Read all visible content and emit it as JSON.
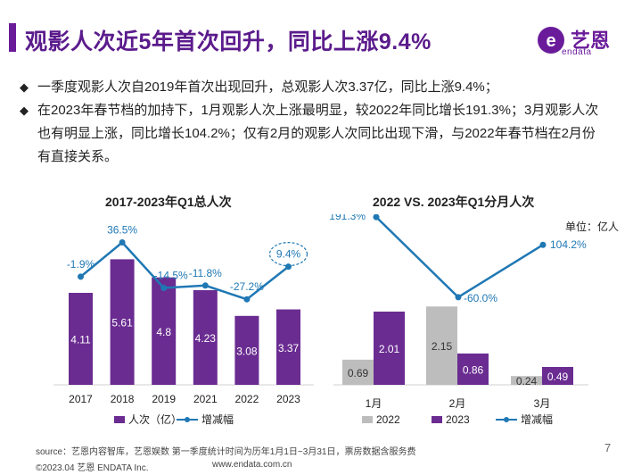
{
  "header": {
    "title": "观影人次近5年首次回升，同比上涨9.4%",
    "logo_text": "艺恩",
    "logo_sub": "endata",
    "accent": "#5b1b8c"
  },
  "bullets": [
    "一季度观影人次自2019年首次出现回升，总观影人次3.37亿，同比上涨9.4%；",
    "在2023年春节档的加持下，1月观影人次上涨最明显，较2022年同比增长191.3%；3月观影人次也有明显上涨，同比增长104.2%；仅有2月的观影人次同比出现下滑，与2022年春节档在2月份有直接关系。"
  ],
  "bullet_mark": "◆",
  "chart_data": [
    {
      "type": "bar",
      "title": "2017-2023年Q1总人次",
      "categories": [
        "2017",
        "2018",
        "2019",
        "2021",
        "2022",
        "2023"
      ],
      "series": [
        {
          "name": "人次（亿）",
          "kind": "bar",
          "color": "#6a2c91",
          "values": [
            4.11,
            5.61,
            4.8,
            4.23,
            3.08,
            3.37
          ],
          "labels": [
            "4.11",
            "5.61",
            "4.8",
            "4.23",
            "3.08",
            "3.37"
          ]
        },
        {
          "name": "增减幅",
          "kind": "line",
          "color": "#1f78b4",
          "values": [
            -1.9,
            36.5,
            -14.5,
            -11.8,
            -27.2,
            9.4
          ],
          "labels": [
            "-1.9%",
            "36.5%",
            "-14.5%",
            "-11.8%",
            "-27.2%",
            "9.4%"
          ]
        }
      ],
      "highlight_index": 5,
      "ylim_bar": [
        0,
        6
      ],
      "ylim_line": [
        -40,
        45
      ]
    },
    {
      "type": "bar",
      "title": "2022 VS. 2023年Q1分月人次",
      "unit": "单位：亿人",
      "categories": [
        "1月",
        "2月",
        "3月"
      ],
      "series": [
        {
          "name": "2022",
          "kind": "bar",
          "color": "#bdbdbd",
          "values": [
            0.69,
            2.15,
            0.24
          ],
          "labels": [
            "0.69",
            "2.15",
            "0.24"
          ]
        },
        {
          "name": "2023",
          "kind": "bar",
          "color": "#6a2c91",
          "values": [
            2.01,
            0.86,
            0.49
          ],
          "labels": [
            "2.01",
            "0.86",
            "0.49"
          ]
        },
        {
          "name": "增减幅",
          "kind": "line",
          "color": "#1f78b4",
          "values": [
            191.3,
            -60.0,
            104.2
          ],
          "labels": [
            "191.3%",
            "-60.0%",
            "104.2%"
          ]
        }
      ],
      "ylim_bar": [
        0,
        2.5
      ],
      "ylim_line": [
        -80,
        200
      ]
    }
  ],
  "footer": {
    "source": "source：艺恩内容智库，艺恩娱数    第一季度统计时间为历年1月1日~3月31日，票房数据含服务费",
    "copyright": "©2023.04 艺恩 ENDATA Inc.",
    "url": "www.endata.com.cn",
    "page": "7"
  }
}
